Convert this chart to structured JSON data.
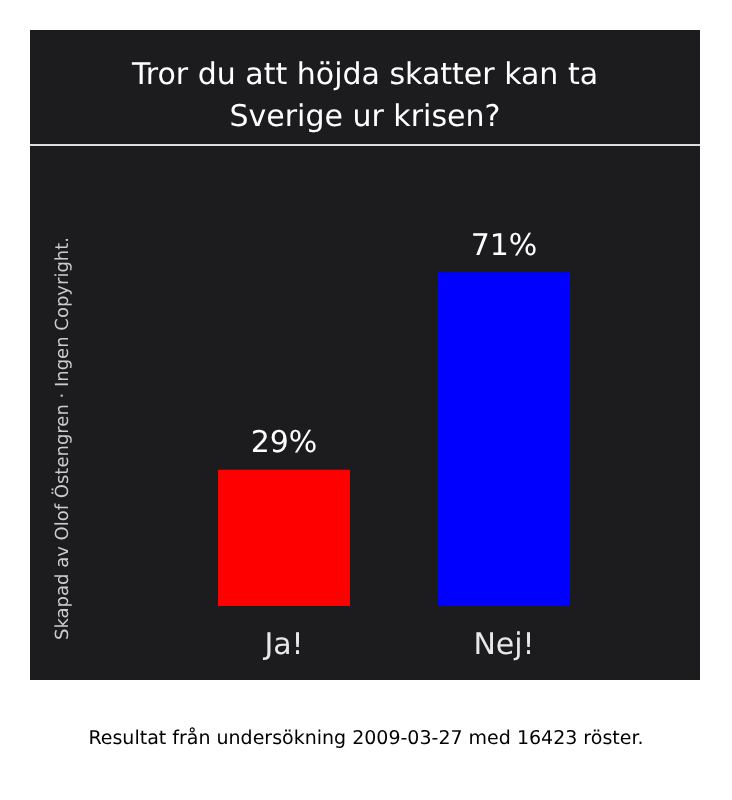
{
  "chart_data": {
    "type": "bar",
    "title": "Tror du att höjda skatter kan ta Sverige ur krisen?",
    "categories": [
      "Ja!",
      "Nej!"
    ],
    "values": [
      29,
      71
    ],
    "colors": [
      "#ff0000",
      "#0000ff"
    ],
    "value_labels": [
      "29%",
      "71%"
    ],
    "annotations": [
      "Skapad av Olof Östengren · Ingen Copyright.",
      "Resultat från undersökning 2009-03-27 med 16423 röster."
    ]
  }
}
